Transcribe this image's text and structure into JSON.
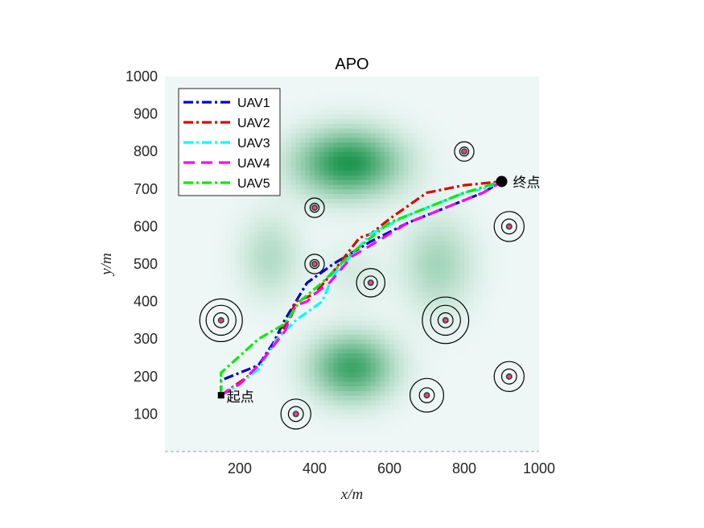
{
  "chart_data": {
    "type": "line",
    "title": "APO",
    "xlabel": "x/m",
    "ylabel": "y/m",
    "xlim": [
      0,
      1000
    ],
    "ylim": [
      0,
      1000
    ],
    "xticks": [
      200,
      400,
      600,
      800,
      1000
    ],
    "yticks": [
      100,
      200,
      300,
      400,
      500,
      600,
      700,
      800,
      900,
      1000
    ],
    "grid": false,
    "legend_position": "top-left",
    "background": {
      "type": "heatmap",
      "base_color": "#eef7f6",
      "peak_color": "#1e9650",
      "peaks": [
        {
          "x": 490,
          "y": 770,
          "sx": 95,
          "sy": 60,
          "amp": 1.0
        },
        {
          "x": 500,
          "y": 225,
          "sx": 75,
          "sy": 60,
          "amp": 0.85
        },
        {
          "x": 730,
          "y": 500,
          "sx": 65,
          "sy": 85,
          "amp": 0.35
        },
        {
          "x": 280,
          "y": 520,
          "sx": 55,
          "sy": 75,
          "amp": 0.28
        },
        {
          "x": 500,
          "y": 480,
          "sx": 55,
          "sy": 55,
          "amp": 0.12
        }
      ]
    },
    "obstacles": [
      {
        "x": 150,
        "y": 350,
        "rings": [
          20,
          40,
          57
        ]
      },
      {
        "x": 350,
        "y": 100,
        "rings": [
          20,
          40
        ]
      },
      {
        "x": 400,
        "y": 650,
        "rings": [
          12,
          26
        ]
      },
      {
        "x": 400,
        "y": 500,
        "rings": [
          12,
          26
        ]
      },
      {
        "x": 550,
        "y": 450,
        "rings": [
          18,
          38
        ]
      },
      {
        "x": 700,
        "y": 150,
        "rings": [
          20,
          45
        ]
      },
      {
        "x": 750,
        "y": 350,
        "rings": [
          20,
          40,
          62
        ]
      },
      {
        "x": 800,
        "y": 800,
        "rings": [
          12,
          26
        ]
      },
      {
        "x": 920,
        "y": 600,
        "rings": [
          20,
          40
        ]
      },
      {
        "x": 920,
        "y": 200,
        "rings": [
          20,
          40
        ]
      }
    ],
    "start": {
      "x": 150,
      "y": 150,
      "label": "起点"
    },
    "goal": {
      "x": 900,
      "y": 720,
      "label": "终点"
    },
    "series": [
      {
        "name": "UAV1",
        "color": "#0000cc",
        "dash": "dashdot",
        "x": [
          150,
          150,
          250,
          290,
          320,
          380,
          450,
          550,
          650,
          750,
          850,
          900
        ],
        "y": [
          150,
          190,
          230,
          290,
          350,
          450,
          500,
          560,
          610,
          650,
          690,
          720
        ]
      },
      {
        "name": "UAV2",
        "color": "#e00000",
        "dash": "dashdot",
        "x": [
          150,
          150,
          250,
          330,
          350,
          400,
          450,
          520,
          550,
          600,
          700,
          800,
          900
        ],
        "y": [
          150,
          150,
          220,
          350,
          400,
          420,
          480,
          570,
          580,
          620,
          690,
          710,
          720
        ]
      },
      {
        "name": "UAV3",
        "color": "#00ffff",
        "dash": "dashdot",
        "x": [
          150,
          200,
          250,
          300,
          350,
          420,
          450,
          550,
          650,
          750,
          800,
          850,
          900
        ],
        "y": [
          150,
          180,
          220,
          300,
          350,
          400,
          470,
          580,
          630,
          670,
          690,
          700,
          720
        ]
      },
      {
        "name": "UAV4",
        "color": "#ff00ff",
        "dash": "dashed",
        "x": [
          150,
          200,
          250,
          320,
          350,
          380,
          400,
          440,
          500,
          550,
          650,
          750,
          850,
          900
        ],
        "y": [
          150,
          180,
          230,
          320,
          390,
          400,
          420,
          450,
          520,
          550,
          610,
          650,
          690,
          720
        ]
      },
      {
        "name": "UAV5",
        "color": "#00ee00",
        "dash": "dashdot",
        "x": [
          150,
          150,
          250,
          320,
          360,
          420,
          500,
          550,
          600,
          700,
          800,
          900
        ],
        "y": [
          150,
          210,
          300,
          340,
          400,
          450,
          530,
          570,
          610,
          650,
          690,
          720
        ]
      }
    ]
  }
}
